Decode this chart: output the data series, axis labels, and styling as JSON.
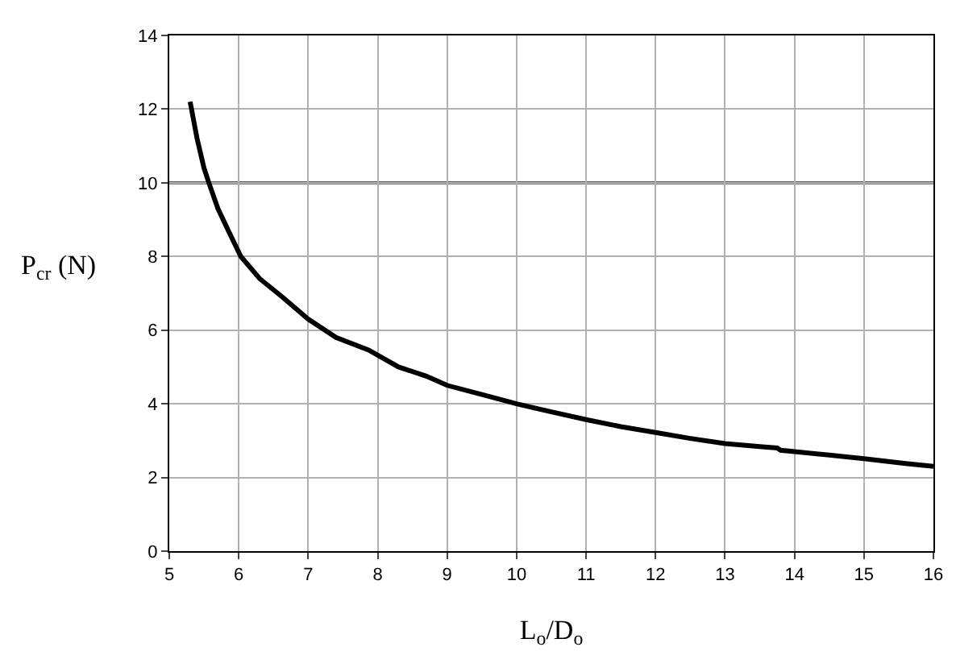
{
  "chart_data": {
    "type": "line",
    "xlabel": "L$_{o}$/D$_{o}$",
    "ylabel": "P$_{cr}$ (N)",
    "x": [
      5.3,
      5.4,
      5.5,
      5.57,
      5.7,
      5.85,
      6.03,
      6.3,
      6.64,
      7.0,
      7.4,
      7.87,
      8.3,
      8.7,
      9.0,
      9.5,
      10.0,
      10.5,
      11.0,
      11.5,
      12.0,
      12.5,
      13.0,
      13.5,
      13.75,
      13.8,
      14.0,
      14.5,
      15.0,
      15.6,
      16.0
    ],
    "series": [
      {
        "color": "#000000",
        "values": [
          12.2,
          11.2,
          10.4,
          10.0,
          9.3,
          8.7,
          8.0,
          7.4,
          6.88,
          6.3,
          5.8,
          5.46,
          5.0,
          4.75,
          4.5,
          4.25,
          4.0,
          3.78,
          3.57,
          3.38,
          3.22,
          3.06,
          2.92,
          2.84,
          2.8,
          2.74,
          2.7,
          2.61,
          2.51,
          2.38,
          2.3
        ]
      }
    ],
    "xlim": [
      5,
      16
    ],
    "xticks": [
      5,
      6,
      7,
      8,
      9,
      10,
      11,
      12,
      13,
      14,
      15,
      16
    ],
    "ylim": [
      0,
      14
    ],
    "yticks": [
      0,
      2,
      4,
      6,
      8,
      10,
      12,
      14
    ],
    "ref_lines": [
      {
        "axis": "y",
        "value": 10,
        "color": "#555555"
      }
    ],
    "grid": true,
    "marker": "none",
    "line_style": "solid"
  }
}
